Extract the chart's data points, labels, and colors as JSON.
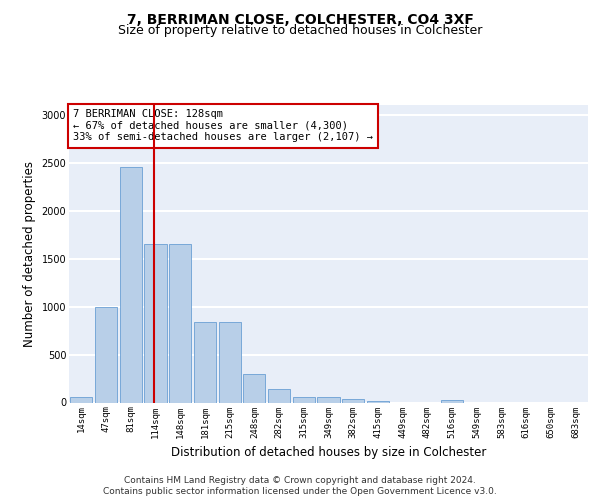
{
  "title_line1": "7, BERRIMAN CLOSE, COLCHESTER, CO4 3XF",
  "title_line2": "Size of property relative to detached houses in Colchester",
  "xlabel": "Distribution of detached houses by size in Colchester",
  "ylabel": "Number of detached properties",
  "footer_line1": "Contains HM Land Registry data © Crown copyright and database right 2024.",
  "footer_line2": "Contains public sector information licensed under the Open Government Licence v3.0.",
  "annotation_line1": "7 BERRIMAN CLOSE: 128sqm",
  "annotation_line2": "← 67% of detached houses are smaller (4,300)",
  "annotation_line3": "33% of semi-detached houses are larger (2,107) →",
  "bar_labels": [
    "14sqm",
    "47sqm",
    "81sqm",
    "114sqm",
    "148sqm",
    "181sqm",
    "215sqm",
    "248sqm",
    "282sqm",
    "315sqm",
    "349sqm",
    "382sqm",
    "415sqm",
    "449sqm",
    "482sqm",
    "516sqm",
    "549sqm",
    "583sqm",
    "616sqm",
    "650sqm",
    "683sqm"
  ],
  "bar_values": [
    60,
    1000,
    2450,
    1650,
    1650,
    840,
    840,
    300,
    140,
    60,
    55,
    35,
    15,
    0,
    0,
    30,
    0,
    0,
    0,
    0,
    0
  ],
  "bar_color": "#b8cfe8",
  "bar_edge_color": "#6a9fd4",
  "property_line_color": "#cc0000",
  "ylim": [
    0,
    3100
  ],
  "yticks": [
    0,
    500,
    1000,
    1500,
    2000,
    2500,
    3000
  ],
  "background_color": "#e8eef8",
  "grid_color": "#ffffff",
  "title_fontsize": 10,
  "subtitle_fontsize": 9,
  "axis_label_fontsize": 8.5,
  "tick_fontsize": 7,
  "annotation_fontsize": 7.5,
  "footer_fontsize": 6.5
}
